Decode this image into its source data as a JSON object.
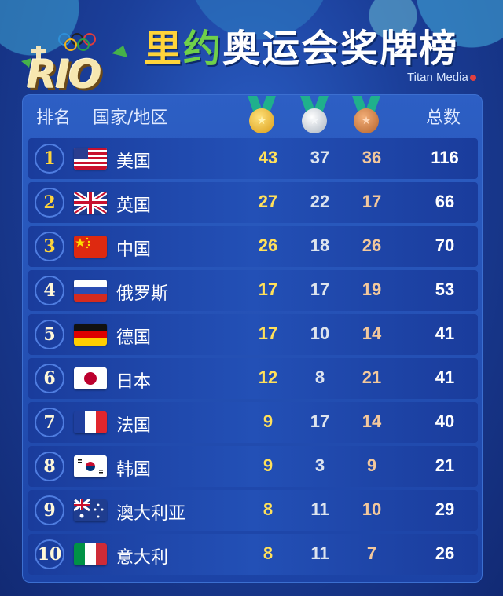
{
  "header": {
    "logo": "RIO",
    "title_chars": [
      "里",
      "约",
      "奥",
      "运",
      "会",
      "奖",
      "牌",
      "榜"
    ],
    "credit": "Titan Media"
  },
  "columns": {
    "rank": "排名",
    "country": "国家/地区",
    "gold_icon": "gold-medal-icon",
    "silver_icon": "silver-medal-icon",
    "bronze_icon": "bronze-medal-icon",
    "total": "总数"
  },
  "rows": [
    {
      "rank": "1",
      "flag": "us-flag-icon",
      "country": "美国",
      "gold": "43",
      "silver": "37",
      "bronze": "36",
      "total": "116"
    },
    {
      "rank": "2",
      "flag": "uk-flag-icon",
      "country": "英国",
      "gold": "27",
      "silver": "22",
      "bronze": "17",
      "total": "66"
    },
    {
      "rank": "3",
      "flag": "china-flag-icon",
      "country": "中国",
      "gold": "26",
      "silver": "18",
      "bronze": "26",
      "total": "70"
    },
    {
      "rank": "4",
      "flag": "russia-flag-icon",
      "country": "俄罗斯",
      "gold": "17",
      "silver": "17",
      "bronze": "19",
      "total": "53"
    },
    {
      "rank": "5",
      "flag": "germany-flag-icon",
      "country": "德国",
      "gold": "17",
      "silver": "10",
      "bronze": "14",
      "total": "41"
    },
    {
      "rank": "6",
      "flag": "japan-flag-icon",
      "country": "日本",
      "gold": "12",
      "silver": "8",
      "bronze": "21",
      "total": "41"
    },
    {
      "rank": "7",
      "flag": "france-flag-icon",
      "country": "法国",
      "gold": "9",
      "silver": "17",
      "bronze": "14",
      "total": "40"
    },
    {
      "rank": "8",
      "flag": "korea-flag-icon",
      "country": "韩国",
      "gold": "9",
      "silver": "3",
      "bronze": "9",
      "total": "21"
    },
    {
      "rank": "9",
      "flag": "australia-flag-icon",
      "country": "澳大利亚",
      "gold": "8",
      "silver": "11",
      "bronze": "10",
      "total": "29"
    },
    {
      "rank": "10",
      "flag": "italy-flag-icon",
      "country": "意大利",
      "gold": "8",
      "silver": "11",
      "bronze": "7",
      "total": "26"
    }
  ],
  "colors": {
    "background": "#1b3f9a",
    "gold": "#ffe05a",
    "silver": "#dde4ee",
    "bronze": "#f3c89c"
  }
}
